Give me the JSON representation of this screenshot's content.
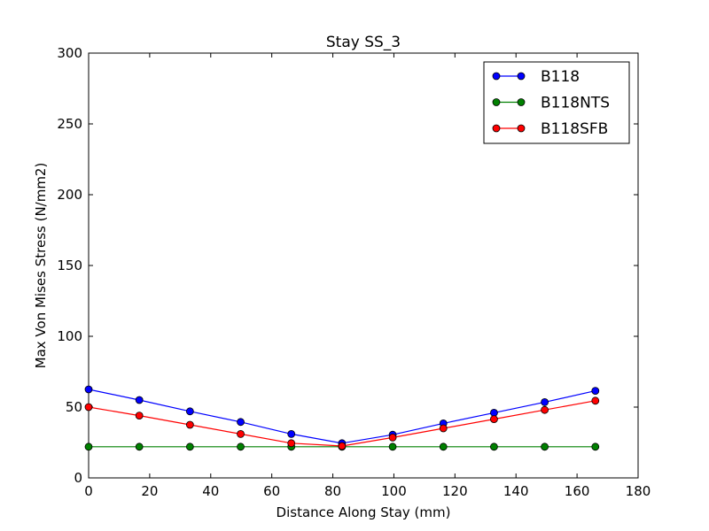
{
  "chart_data": {
    "type": "line",
    "title": "Stay SS_3",
    "xlabel": "Distance Along Stay (mm)",
    "ylabel": "Max Von Mises Stress (N/mm2)",
    "xlim": [
      0,
      180
    ],
    "ylim": [
      0,
      300
    ],
    "xticks": [
      0,
      20,
      40,
      60,
      80,
      100,
      120,
      140,
      160,
      180
    ],
    "yticks": [
      0,
      50,
      100,
      150,
      200,
      250,
      300
    ],
    "grid": false,
    "legend_position": "top-right",
    "x": [
      0,
      16.6,
      33.2,
      49.8,
      66.4,
      83.0,
      99.6,
      116.2,
      132.8,
      149.4,
      166.0
    ],
    "series": [
      {
        "name": "B118",
        "color": "#0000ff",
        "values": [
          62.5,
          55,
          47,
          39.5,
          31,
          24.5,
          30.5,
          38.5,
          46,
          53.5,
          61.5
        ]
      },
      {
        "name": "B118NTS",
        "color": "#008000",
        "values": [
          22,
          22,
          22,
          22,
          22,
          22,
          22,
          22,
          22,
          22,
          22
        ]
      },
      {
        "name": "B118SFB",
        "color": "#ff0000",
        "values": [
          50,
          44,
          37.5,
          31,
          24.5,
          22.5,
          28.5,
          35,
          41.5,
          48,
          54.5
        ]
      }
    ]
  }
}
